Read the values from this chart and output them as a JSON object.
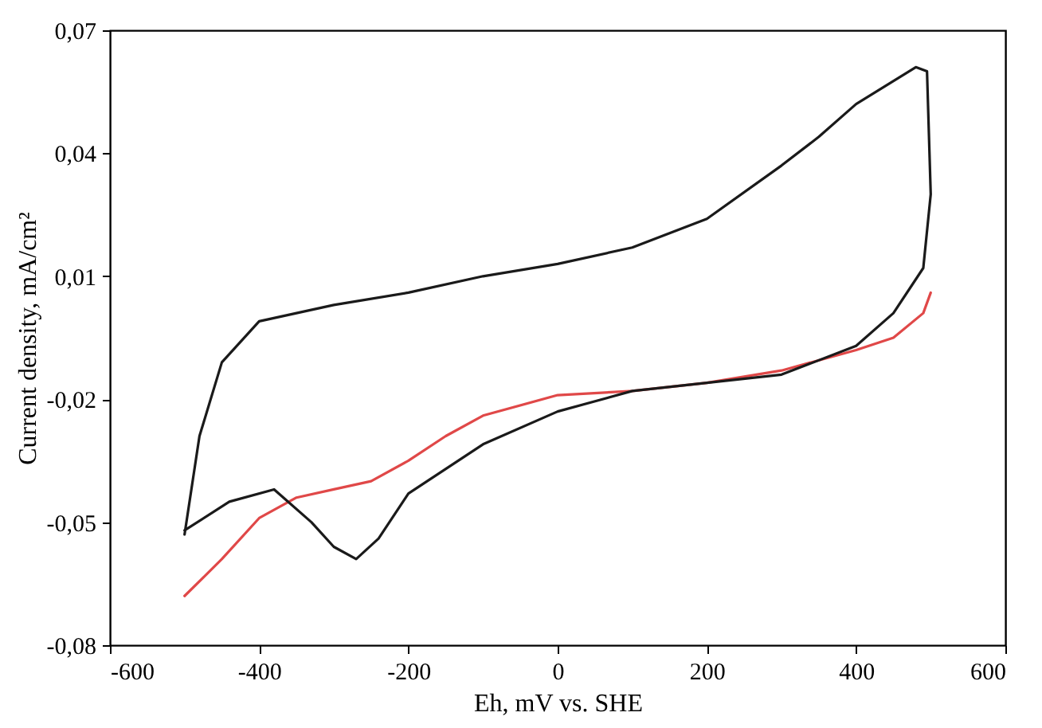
{
  "chart_data": {
    "type": "line",
    "xlabel": "Eh, mV vs. SHE",
    "ylabel": "Current density, mA/cm²",
    "xlim": [
      -600,
      600
    ],
    "xticks": [
      -600,
      -400,
      -200,
      0,
      200,
      400,
      600
    ],
    "ylim": [
      -0.08,
      0.07
    ],
    "yticks": [
      {
        "value": -0.08,
        "label": "-0,08"
      },
      {
        "value": -0.05,
        "label": "-0,05"
      },
      {
        "value": -0.02,
        "label": "-0,02"
      },
      {
        "value": 0.01,
        "label": "0,01"
      },
      {
        "value": 0.04,
        "label": "0,04"
      },
      {
        "value": 0.07,
        "label": "0,07"
      }
    ],
    "grid": false,
    "marker": "none",
    "line_style": "solid",
    "series": [
      {
        "color": "#e04848",
        "x": [
          -500,
          -450,
          -400,
          -350,
          -300,
          -250,
          -200,
          -150,
          -100,
          0,
          100,
          200,
          300,
          400,
          450,
          490,
          500
        ],
        "values": [
          -0.068,
          -0.059,
          -0.049,
          -0.044,
          -0.042,
          -0.04,
          -0.035,
          -0.029,
          -0.024,
          -0.019,
          -0.018,
          -0.016,
          -0.013,
          -0.008,
          -0.005,
          0.001,
          0.006
        ]
      },
      {
        "color": "#1a1a1a",
        "x": [
          -500,
          -440,
          -380,
          -330,
          -300,
          -270,
          -240,
          -200,
          -100,
          0,
          100,
          200,
          300,
          400,
          450,
          490,
          500,
          495,
          480,
          400,
          350,
          300,
          200,
          100,
          0,
          -100,
          -200,
          -300,
          -400,
          -450,
          -480,
          -500
        ],
        "values": [
          -0.052,
          -0.045,
          -0.042,
          -0.05,
          -0.056,
          -0.059,
          -0.054,
          -0.043,
          -0.031,
          -0.023,
          -0.018,
          -0.016,
          -0.014,
          -0.007,
          0.001,
          0.012,
          0.03,
          0.06,
          0.061,
          0.052,
          0.044,
          0.037,
          0.024,
          0.017,
          0.013,
          0.01,
          0.006,
          0.003,
          -0.001,
          -0.011,
          -0.029,
          -0.053
        ]
      }
    ]
  }
}
